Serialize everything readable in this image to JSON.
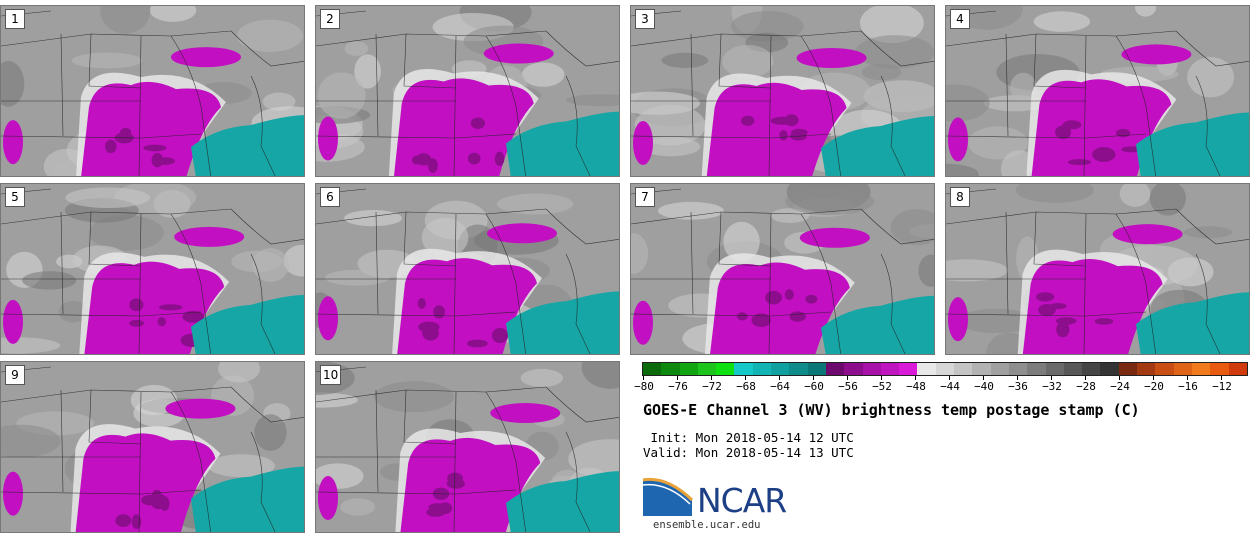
{
  "panels": [
    {
      "label": "1"
    },
    {
      "label": "2"
    },
    {
      "label": "3"
    },
    {
      "label": "4"
    },
    {
      "label": "5"
    },
    {
      "label": "6"
    },
    {
      "label": "7"
    },
    {
      "label": "8"
    },
    {
      "label": "9"
    },
    {
      "label": "10"
    }
  ],
  "colorbar": {
    "ticks": [
      "−80",
      "−76",
      "−72",
      "−68",
      "−64",
      "−60",
      "−56",
      "−52",
      "−48",
      "−44",
      "−40",
      "−36",
      "−32",
      "−28",
      "−24",
      "−20",
      "−16",
      "−12"
    ],
    "colors": [
      "#0b6b0b",
      "#0e880e",
      "#11a611",
      "#1cc41c",
      "#0fe00f",
      "#16c8c8",
      "#12b4b4",
      "#10a0a0",
      "#0e8c8c",
      "#0b7878",
      "#6e0a6e",
      "#8c0e8c",
      "#a812a8",
      "#c016c0",
      "#d91bd9",
      "#e8e8e8",
      "#d6d6d6",
      "#c4c4c4",
      "#b2b2b2",
      "#a0a0a0",
      "#8e8e8e",
      "#7c7c7c",
      "#6a6a6a",
      "#585858",
      "#464646",
      "#343434",
      "#7a2a10",
      "#a33a12",
      "#c84e14",
      "#e06418",
      "#f07a1c",
      "#e85a10",
      "#d03a0c"
    ]
  },
  "title": "GOES-E Channel 3 (WV) brightness temp postage stamp (C)",
  "init_line": " Init: Mon 2018-05-14 12 UTC",
  "valid_line": "Valid: Mon 2018-05-14 13 UTC",
  "logo": {
    "text": "NCAR",
    "url": "ensemble.ucar.edu"
  }
}
